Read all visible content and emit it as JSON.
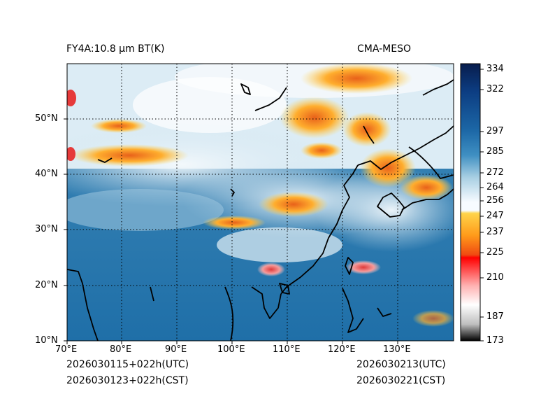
{
  "header": {
    "product_title": "FY4A:10.8 µm BT(K)",
    "source_label": "CMA-MESO"
  },
  "map": {
    "lat_labels": [
      "50°N",
      "40°N",
      "30°N",
      "20°N",
      "10°N"
    ],
    "lon_labels": [
      "70°E",
      "80°E",
      "90°E",
      "100°E",
      "110°E",
      "120°E",
      "130°E"
    ],
    "extent": {
      "lon_min": 70,
      "lon_max": 140,
      "lat_min": 10,
      "lat_max": 60
    }
  },
  "colorbar": {
    "unit": "K",
    "tick_labels": [
      "334",
      "322",
      "297",
      "285",
      "272",
      "264",
      "256",
      "247",
      "237",
      "225",
      "210",
      "187",
      "173"
    ]
  },
  "timestamps": {
    "init_utc": "2026030115+022h(UTC)",
    "init_cst": "2026030123+022h(CST)",
    "valid_utc": "2026030213(UTC)",
    "valid_cst": "2026030221(CST)"
  }
}
